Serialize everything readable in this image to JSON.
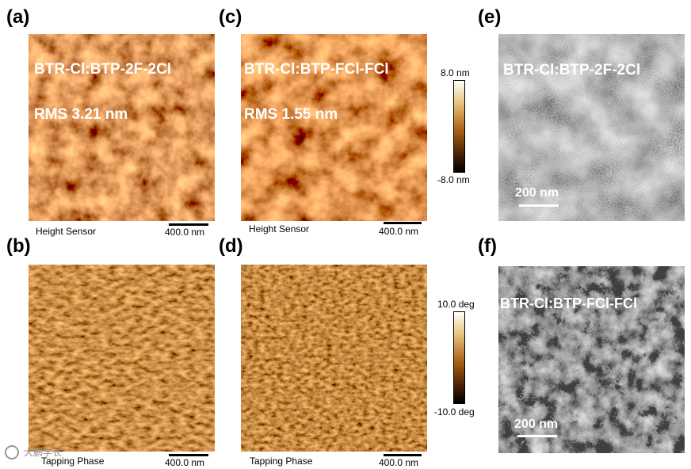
{
  "panels": {
    "a": {
      "letter": "(a)",
      "sample": "BTR-Cl:BTP-2F-2Cl",
      "rms": "RMS  3.21 nm",
      "caption": "Height Sensor",
      "scale": "400.0 nm"
    },
    "b": {
      "letter": "(b)",
      "caption": "Tapping Phase",
      "scale": "400.0 nm"
    },
    "c": {
      "letter": "(c)",
      "sample": "BTR-Cl:BTP-FCl-FCl",
      "rms": "RMS  1.55 nm",
      "caption": "Height Sensor",
      "scale": "400.0 nm"
    },
    "d": {
      "letter": "(d)",
      "caption": "Tapping Phase",
      "scale": "400.0 nm"
    },
    "e": {
      "letter": "(e)",
      "sample": "BTR-Cl:BTP-2F-2Cl",
      "scale": "200 nm"
    },
    "f": {
      "letter": "(f)",
      "sample": "BTR-Cl:BTP-FCl-FCl",
      "scale": "200 nm"
    }
  },
  "colorbars": {
    "height": {
      "max": "8.0 nm",
      "min": "-8.0 nm"
    },
    "phase": {
      "max": "10.0 deg",
      "min": "-10.0 deg"
    }
  },
  "colors": {
    "afm_light": "#f2c56a",
    "afm_mid": "#b06a18",
    "afm_dark": "#3a1d05"
  },
  "watermark": "大鹏学长"
}
